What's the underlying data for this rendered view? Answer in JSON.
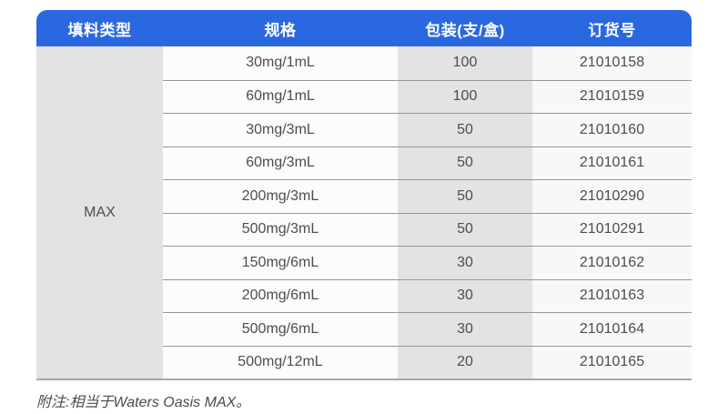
{
  "table": {
    "headers": {
      "filler_type": "填料类型",
      "spec": "规格",
      "pack": "包装(支/盒)",
      "order_no": "订货号"
    },
    "filler_type": "MAX",
    "rows": [
      {
        "spec": "30mg/1mL",
        "pack": "100",
        "order_no": "21010158"
      },
      {
        "spec": "60mg/1mL",
        "pack": "100",
        "order_no": "21010159"
      },
      {
        "spec": "30mg/3mL",
        "pack": "50",
        "order_no": "21010160"
      },
      {
        "spec": "60mg/3mL",
        "pack": "50",
        "order_no": "21010161"
      },
      {
        "spec": "200mg/3mL",
        "pack": "50",
        "order_no": "21010290"
      },
      {
        "spec": "500mg/3mL",
        "pack": "50",
        "order_no": "21010291"
      },
      {
        "spec": "150mg/6mL",
        "pack": "30",
        "order_no": "21010162"
      },
      {
        "spec": "200mg/6mL",
        "pack": "30",
        "order_no": "21010163"
      },
      {
        "spec": "500mg/6mL",
        "pack": "30",
        "order_no": "21010164"
      },
      {
        "spec": "500mg/12mL",
        "pack": "20",
        "order_no": "21010165"
      }
    ]
  },
  "footnote": "附注:相当于Waters Oasis MAX。",
  "colors": {
    "header_bg": "#2968e0",
    "header_text": "#ffffff",
    "merged_col_bg": "#e2e2e2",
    "pack_col_bg": "#e3e3e3",
    "spec_col_bg": "#fcfcfc",
    "order_col_bg": "#f8f8f8",
    "row_separator": "#979797",
    "table_bottom_border": "#a8a8a8",
    "body_text": "#4d4d4d"
  }
}
